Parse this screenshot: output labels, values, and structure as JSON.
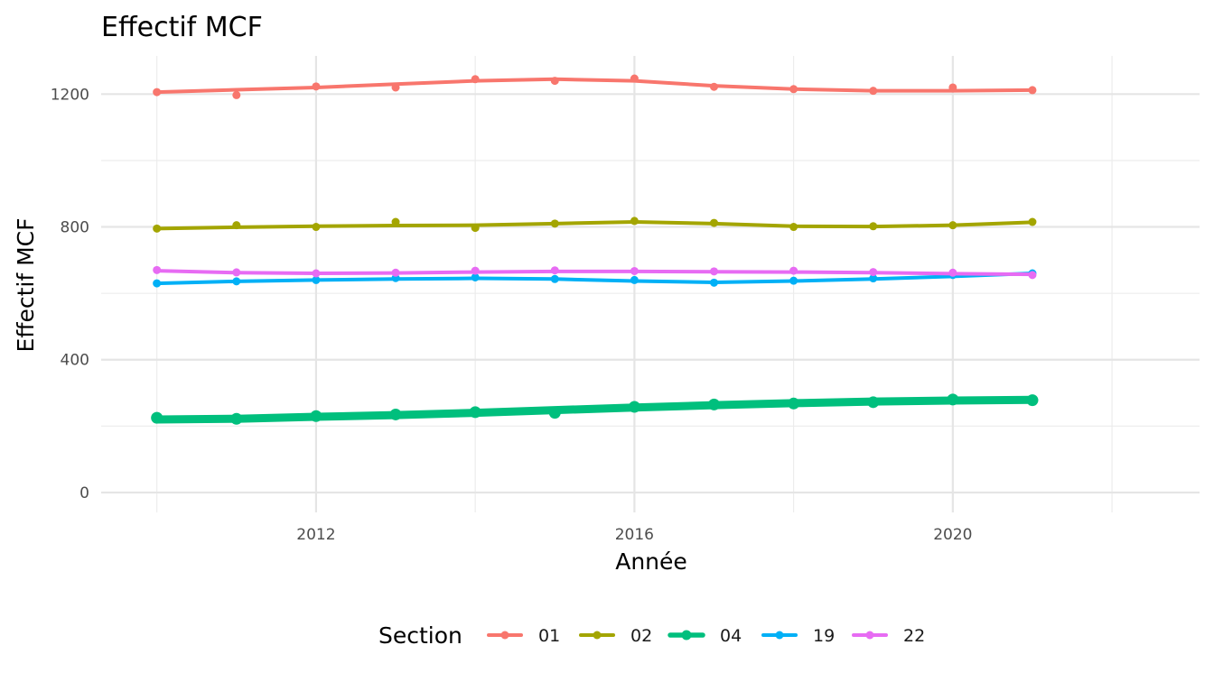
{
  "chart_data": {
    "type": "line",
    "title": "Effectif MCF",
    "xlabel": "Année",
    "ylabel": "Effectif MCF",
    "xlim": [
      2009.3,
      2023.1
    ],
    "ylim": [
      -60,
      1315
    ],
    "x_ticks": [
      2012,
      2016,
      2020
    ],
    "x_tick_labels": [
      "2012",
      "2016",
      "2020"
    ],
    "x_minor_ticks": [
      2010,
      2014,
      2018,
      2022
    ],
    "y_ticks": [
      0,
      400,
      800,
      1200
    ],
    "y_tick_labels": [
      "0",
      "400",
      "800",
      "1200"
    ],
    "y_minor_ticks": [
      200,
      600,
      1000
    ],
    "grid": true,
    "legend": {
      "title": "Section",
      "position": "bottom"
    },
    "x": [
      2010,
      2011,
      2012,
      2013,
      2014,
      2015,
      2016,
      2017,
      2018,
      2019,
      2020,
      2021
    ],
    "series": [
      {
        "name": "01",
        "color": "#F8766D",
        "thickness": "normal",
        "points": [
          1206,
          1197,
          1223,
          1220,
          1245,
          1240,
          1247,
          1222,
          1215,
          1210,
          1220,
          1212
        ],
        "smooth": [
          1206,
          1213,
          1220,
          1230,
          1240,
          1245,
          1240,
          1225,
          1215,
          1210,
          1210,
          1212
        ]
      },
      {
        "name": "02",
        "color": "#A3A500",
        "thickness": "normal",
        "points": [
          795,
          805,
          800,
          815,
          797,
          810,
          818,
          812,
          800,
          802,
          805,
          815
        ],
        "smooth": [
          795,
          799,
          802,
          804,
          805,
          810,
          815,
          810,
          802,
          801,
          805,
          814
        ]
      },
      {
        "name": "04",
        "color": "#00BF7D",
        "thickness": "thick",
        "points": [
          225,
          222,
          230,
          235,
          242,
          240,
          258,
          265,
          268,
          272,
          280,
          278
        ],
        "smooth": [
          220,
          222,
          228,
          233,
          240,
          248,
          256,
          263,
          269,
          274,
          277,
          279
        ]
      },
      {
        "name": "19",
        "color": "#00B0F6",
        "thickness": "normal",
        "points": [
          630,
          636,
          640,
          646,
          648,
          643,
          640,
          632,
          638,
          645,
          655,
          660
        ],
        "smooth": [
          630,
          636,
          640,
          643,
          645,
          643,
          637,
          633,
          637,
          643,
          651,
          660
        ]
      },
      {
        "name": "22",
        "color": "#E76BF3",
        "thickness": "normal",
        "points": [
          670,
          663,
          660,
          662,
          668,
          669,
          667,
          666,
          668,
          664,
          662,
          655
        ],
        "smooth": [
          668,
          662,
          660,
          661,
          664,
          666,
          666,
          665,
          664,
          662,
          659,
          657
        ]
      }
    ]
  }
}
